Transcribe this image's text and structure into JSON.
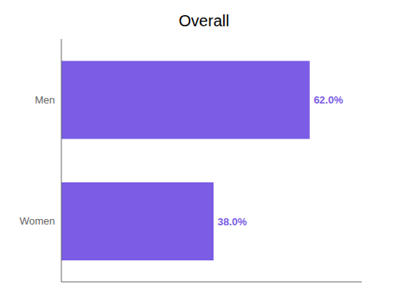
{
  "chart_data": {
    "type": "bar",
    "title": "Overall",
    "orientation": "horizontal",
    "categories": [
      "Men",
      "Women"
    ],
    "values": [
      62.0,
      38.0
    ],
    "value_labels": [
      "62.0%",
      "38.0%"
    ],
    "data_labels": true,
    "color": "#7B5CE5",
    "xlim": [
      0,
      75
    ],
    "xticks": [],
    "tick_labels": "y",
    "grid": false
  }
}
